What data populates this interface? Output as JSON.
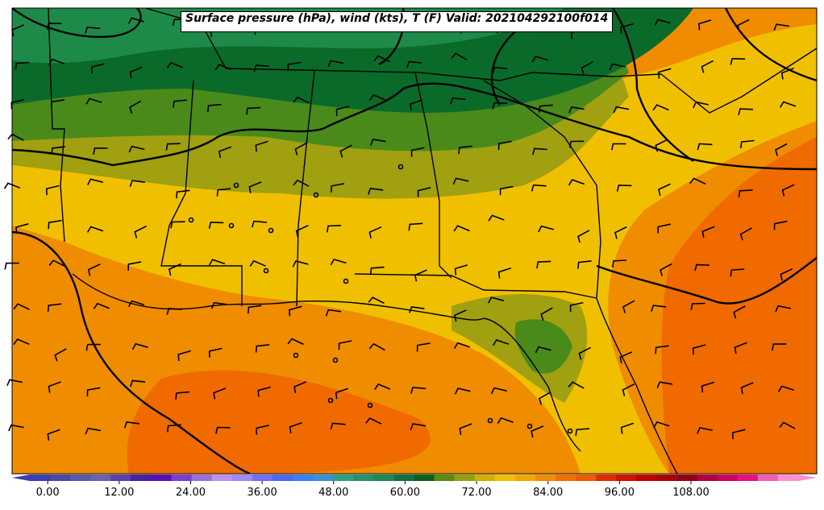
{
  "title": "Surface pressure (hPa), wind (kts), T (F) Valid: 202104292100f014",
  "colorbar": {
    "tick_labels": [
      "0.00",
      "12.00",
      "24.00",
      "36.00",
      "48.00",
      "60.00",
      "72.00",
      "84.00",
      "96.00",
      "108.00"
    ],
    "tick_values": [
      0,
      12,
      24,
      36,
      48,
      60,
      72,
      84,
      96,
      108
    ],
    "min": -3,
    "max": 126,
    "step": 3,
    "colors": [
      "#3b3fae",
      "#4a4aa0",
      "#5a5aa8",
      "#6a62b0",
      "#5e3fa8",
      "#4a1fa0",
      "#5a10b0",
      "#7a40c8",
      "#9a70d8",
      "#c090e8",
      "#a088f0",
      "#7070f0",
      "#4a6af0",
      "#3a80f0",
      "#3a90d0",
      "#30a080",
      "#28906a",
      "#208858",
      "#187040",
      "#106020",
      "#5a8a10",
      "#90a010",
      "#d0b000",
      "#f0c000",
      "#f0a800",
      "#f08c00",
      "#f07000",
      "#f05a00",
      "#e02a00",
      "#d01000",
      "#c00000",
      "#a80008",
      "#900010",
      "#b00040",
      "#d00060",
      "#e81080",
      "#f060b0",
      "#f890d0"
    ]
  },
  "map_legend_note": "",
  "colors": {
    "land_cool": "#1e8a4a",
    "land_dark": "#0a6a2a",
    "land_mid": "#4a8a1a",
    "olive": "#a0a010",
    "yellow": "#f0c000",
    "orange": "#f08c00",
    "dark_orange": "#f06a00",
    "ocean": "#f07a10"
  }
}
